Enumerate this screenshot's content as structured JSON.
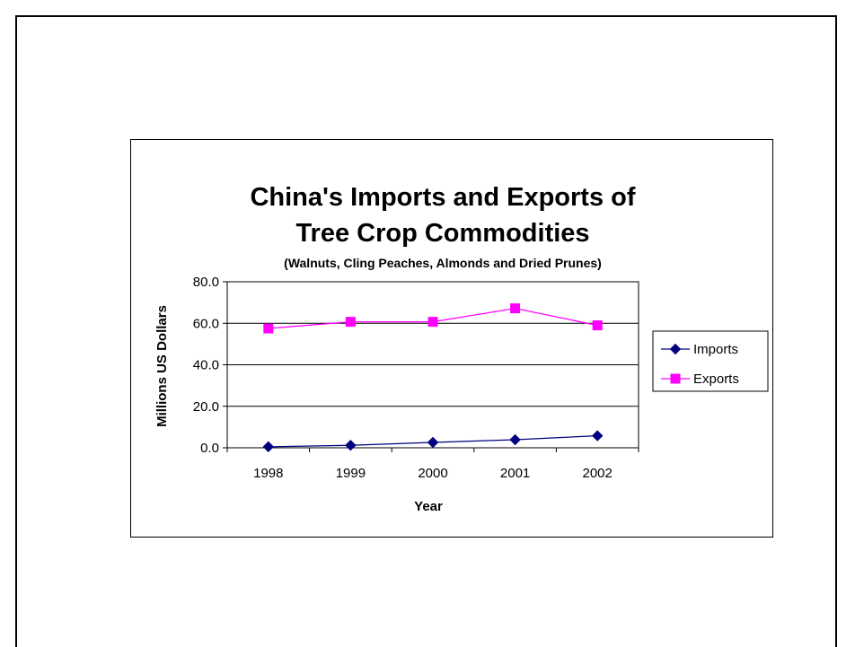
{
  "chart_data": {
    "type": "line",
    "title": "China's Imports and Exports of Tree Crop Commodities",
    "title_lines": [
      "China's Imports and Exports of",
      "Tree Crop Commodities"
    ],
    "subtitle": "(Walnuts, Cling Peaches, Almonds and Dried Prunes)",
    "xlabel": "Year",
    "ylabel": "Millions US Dollars",
    "categories": [
      "1998",
      "1999",
      "2000",
      "2001",
      "2002"
    ],
    "ylim": [
      0,
      80
    ],
    "yticks": [
      "0.0",
      "20.0",
      "40.0",
      "60.0",
      "80.0"
    ],
    "grid": true,
    "legend_position": "right",
    "series": [
      {
        "name": "Imports",
        "values": [
          0.5,
          1.2,
          2.6,
          3.9,
          5.8
        ],
        "color": "#000080",
        "marker": "diamond"
      },
      {
        "name": "Exports",
        "values": [
          57.5,
          60.7,
          60.7,
          67.2,
          59.0
        ],
        "color": "#FF00FF",
        "marker": "square"
      }
    ]
  }
}
